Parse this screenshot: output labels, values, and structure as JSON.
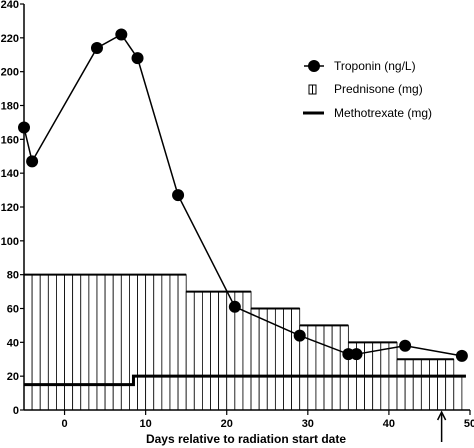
{
  "chart_data": {
    "type": "line",
    "xlabel": "Days relative to radiation start date",
    "ylabel": "",
    "xlim": [
      -5,
      50
    ],
    "ylim": [
      0,
      240
    ],
    "x_ticks": [
      0,
      10,
      20,
      30,
      40,
      50
    ],
    "y_ticks": [
      0,
      20,
      40,
      60,
      80,
      100,
      120,
      140,
      160,
      180,
      200,
      220,
      240
    ],
    "grid": false,
    "legend_position": "top-right",
    "series": [
      {
        "name": "Troponin (ng/L)",
        "style": "line-with-filled-circles",
        "points": [
          {
            "x": -5,
            "y": 167
          },
          {
            "x": -4,
            "y": 147
          },
          {
            "x": 4,
            "y": 214
          },
          {
            "x": 7,
            "y": 222
          },
          {
            "x": 9,
            "y": 208
          },
          {
            "x": 14,
            "y": 127
          },
          {
            "x": 21,
            "y": 61
          },
          {
            "x": 29,
            "y": 44
          },
          {
            "x": 35,
            "y": 33
          },
          {
            "x": 36,
            "y": 33
          },
          {
            "x": 42,
            "y": 38
          },
          {
            "x": 49,
            "y": 32
          }
        ]
      },
      {
        "name": "Prednisone (mg)",
        "style": "daily-hatched-bars",
        "steps": [
          {
            "x_start": -5,
            "x_end": 15,
            "y": 80
          },
          {
            "x_start": 15,
            "x_end": 23,
            "y": 70
          },
          {
            "x_start": 23,
            "x_end": 29,
            "y": 60
          },
          {
            "x_start": 29,
            "x_end": 35,
            "y": 50
          },
          {
            "x_start": 35,
            "x_end": 41,
            "y": 40
          },
          {
            "x_start": 41,
            "x_end": 48,
            "y": 30
          },
          {
            "x_start": 48,
            "x_end": 49,
            "y": 20
          }
        ]
      },
      {
        "name": "Methotrexate (mg)",
        "style": "thick-step-line",
        "steps": [
          {
            "x_start": -5,
            "x_end": 8.5,
            "y": 15
          },
          {
            "x_start": 8.5,
            "x_end": 49.5,
            "y": 20
          }
        ]
      }
    ],
    "annotations": [
      {
        "type": "arrow-up",
        "x": 46.5,
        "meaning": "marker below x-axis"
      }
    ]
  }
}
